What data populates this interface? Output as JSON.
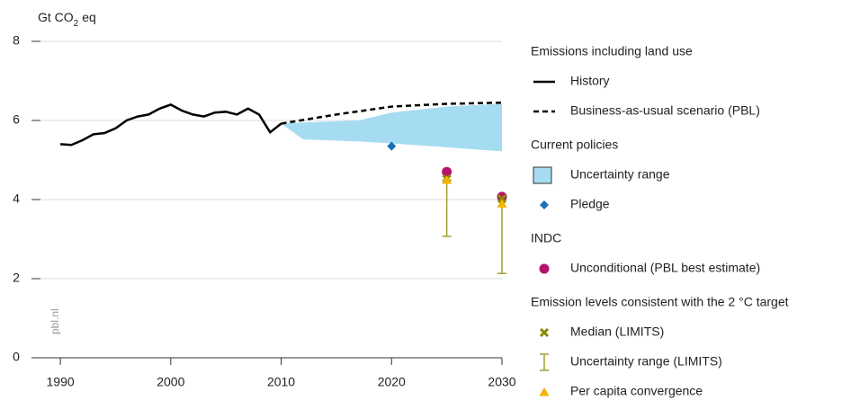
{
  "chart_data": {
    "type": "line",
    "y_label": {
      "main": "Gt CO",
      "sub": "2",
      "unit": "eq"
    },
    "watermark": "pbl.nl",
    "xlim": [
      1988.2,
      2030
    ],
    "xticks": [
      1990,
      2000,
      2010,
      2020,
      2030
    ],
    "ylim": [
      0,
      8
    ],
    "yticks": [
      0,
      2,
      4,
      6,
      8
    ],
    "grid": true,
    "groups": [
      {
        "title": "Emissions including land use",
        "series": [
          {
            "name": "History",
            "style": "line",
            "color": "#000000",
            "x": [
              1990,
              1991,
              1992,
              1993,
              1994,
              1995,
              1996,
              1997,
              1998,
              1999,
              2000,
              2001,
              2002,
              2003,
              2004,
              2005,
              2006,
              2007,
              2008,
              2009,
              2010
            ],
            "values": [
              5.4,
              5.38,
              5.5,
              5.65,
              5.68,
              5.8,
              6.0,
              6.1,
              6.15,
              6.3,
              6.4,
              6.25,
              6.15,
              6.1,
              6.2,
              6.22,
              6.15,
              6.3,
              6.15,
              5.7,
              5.92
            ]
          },
          {
            "name": "Business-as-usual scenario (PBL)",
            "style": "dashed",
            "color": "#000000",
            "x": [
              2010,
              2015,
              2020,
              2025,
              2030
            ],
            "values": [
              5.92,
              6.15,
              6.35,
              6.42,
              6.45
            ]
          }
        ]
      },
      {
        "title": "Current policies",
        "series": [
          {
            "name": "Uncertainty range",
            "style": "band",
            "color": "#a6dcf2",
            "x": [
              2010,
              2012,
              2017,
              2020,
              2025,
              2030
            ],
            "upper": [
              5.92,
              5.95,
              6.0,
              6.2,
              6.35,
              6.42
            ],
            "lower": [
              5.92,
              5.52,
              5.47,
              5.42,
              5.32,
              5.22
            ]
          },
          {
            "name": "Pledge",
            "style": "diamond",
            "color": "#1a6fb5",
            "x": [
              2020
            ],
            "values": [
              5.35
            ]
          }
        ]
      },
      {
        "title": "INDC",
        "series": [
          {
            "name": "Unconditional (PBL best estimate)",
            "style": "circle",
            "color": "#b5126b",
            "x": [
              2025,
              2030
            ],
            "values": [
              4.7,
              4.07
            ]
          }
        ]
      },
      {
        "title": "Emission levels consistent with the 2 °C target",
        "series": [
          {
            "name": "Median (LIMITS)",
            "style": "cross",
            "color": "#8a8a00",
            "x": [
              2025,
              2030
            ],
            "values": [
              4.52,
              4.02
            ]
          },
          {
            "name": "Uncertainty range (LIMITS)",
            "style": "errorbar",
            "color": "#a0a030",
            "x": [
              2025,
              2030
            ],
            "low": [
              3.07,
              2.13
            ],
            "high": [
              4.5,
              4.0
            ]
          },
          {
            "name": "Per capita convergence",
            "style": "triangle",
            "color": "#f5b400",
            "x": [
              2025,
              2030
            ],
            "values": [
              4.5,
              3.9
            ]
          }
        ]
      }
    ]
  }
}
